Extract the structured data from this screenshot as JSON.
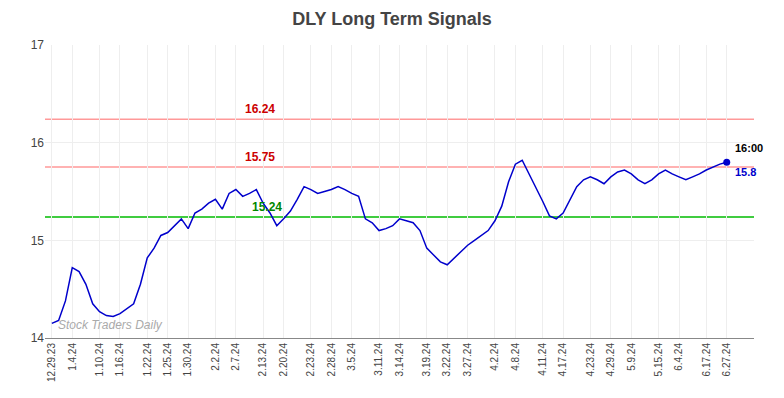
{
  "chart_data": {
    "type": "line",
    "title": "DLY Long Term Signals",
    "x": [
      0,
      1,
      2,
      3,
      4,
      5,
      6,
      7,
      8,
      9,
      10,
      11,
      12,
      13,
      14,
      15,
      16,
      17,
      18,
      19,
      20,
      21,
      22,
      23,
      24,
      25,
      26,
      27,
      28,
      29,
      30,
      31,
      32,
      33,
      34,
      35,
      36,
      37,
      38,
      39,
      40,
      41,
      42,
      43,
      44,
      45,
      46,
      47,
      48,
      49,
      50,
      51,
      52,
      53,
      54,
      55,
      56,
      57,
      58,
      59,
      60,
      61,
      62,
      63,
      64,
      65,
      66,
      67,
      68,
      69,
      70,
      71,
      72,
      73,
      74,
      75,
      76,
      77,
      78,
      79,
      80,
      81,
      82,
      83,
      84,
      85,
      86,
      87,
      88,
      89,
      90,
      91,
      92,
      93,
      94,
      95,
      96,
      97,
      98,
      99
    ],
    "values": [
      14.15,
      14.18,
      14.38,
      14.72,
      14.68,
      14.55,
      14.35,
      14.27,
      14.23,
      14.22,
      14.25,
      14.3,
      14.35,
      14.55,
      14.82,
      14.92,
      15.05,
      15.08,
      15.15,
      15.22,
      15.12,
      15.28,
      15.32,
      15.38,
      15.42,
      15.32,
      15.48,
      15.52,
      15.45,
      15.48,
      15.52,
      15.38,
      15.28,
      15.15,
      15.22,
      15.3,
      15.42,
      15.55,
      15.52,
      15.48,
      15.5,
      15.52,
      15.55,
      15.52,
      15.48,
      15.45,
      15.22,
      15.18,
      15.1,
      15.12,
      15.15,
      15.22,
      15.2,
      15.18,
      15.1,
      14.92,
      14.85,
      14.78,
      14.75,
      14.82,
      14.88,
      14.95,
      15.0,
      15.05,
      15.1,
      15.2,
      15.35,
      15.6,
      15.78,
      15.82,
      15.68,
      15.55,
      15.4,
      15.25,
      15.22,
      15.28,
      15.42,
      15.55,
      15.62,
      15.65,
      15.62,
      15.58,
      15.65,
      15.7,
      15.72,
      15.68,
      15.62,
      15.58,
      15.62,
      15.68,
      15.72,
      15.68,
      15.65,
      15.62,
      15.65,
      15.68,
      15.72,
      15.75,
      15.78,
      15.8
    ],
    "color": "#0000cc",
    "hlines": [
      {
        "value": 15.24,
        "label": "15.24",
        "color": "#00bb00",
        "label_color": "#008800"
      },
      {
        "value": 15.75,
        "label": "15.75",
        "color": "#ff9999",
        "label_color": "#cc0000"
      },
      {
        "value": 16.24,
        "label": "16.24",
        "color": "#ff9999",
        "label_color": "#cc0000"
      }
    ],
    "last_point_labels": [
      "16:00",
      "15.8"
    ],
    "annotations": [
      "Stock Traders Daily"
    ],
    "xlim": [
      -1,
      103
    ],
    "xticks": [
      {
        "value": 0,
        "label": "12.29.23"
      },
      {
        "value": 3,
        "label": "1.4.24"
      },
      {
        "value": 7,
        "label": "1.10.24"
      },
      {
        "value": 10,
        "label": "1.16.24"
      },
      {
        "value": 14,
        "label": "1.22.24"
      },
      {
        "value": 17,
        "label": "1.25.24"
      },
      {
        "value": 20,
        "label": "1.30.24"
      },
      {
        "value": 24,
        "label": "2.2.24"
      },
      {
        "value": 27,
        "label": "2.7.24"
      },
      {
        "value": 31,
        "label": "2.13.24"
      },
      {
        "value": 34,
        "label": "2.20.24"
      },
      {
        "value": 38,
        "label": "2.23.24"
      },
      {
        "value": 41,
        "label": "2.28.24"
      },
      {
        "value": 44,
        "label": "3.5.24"
      },
      {
        "value": 48,
        "label": "3.11.24"
      },
      {
        "value": 51,
        "label": "3.14.24"
      },
      {
        "value": 55,
        "label": "3.19.24"
      },
      {
        "value": 58,
        "label": "3.22.24"
      },
      {
        "value": 61,
        "label": "3.27.24"
      },
      {
        "value": 65,
        "label": "4.2.24"
      },
      {
        "value": 68,
        "label": "4.8.24"
      },
      {
        "value": 72,
        "label": "4.11.24"
      },
      {
        "value": 75,
        "label": "4.17.24"
      },
      {
        "value": 79,
        "label": "4.23.24"
      },
      {
        "value": 82,
        "label": "4.29.24"
      },
      {
        "value": 85,
        "label": "5.9.24"
      },
      {
        "value": 89,
        "label": "5.15.24"
      },
      {
        "value": 92,
        "label": "6.4.24"
      },
      {
        "value": 96,
        "label": "6.17.24"
      },
      {
        "value": 99,
        "label": "6.27.24"
      }
    ],
    "ylim": [
      14.0,
      17.0
    ],
    "yticks": [
      14,
      15,
      16,
      17
    ],
    "grid": true
  }
}
